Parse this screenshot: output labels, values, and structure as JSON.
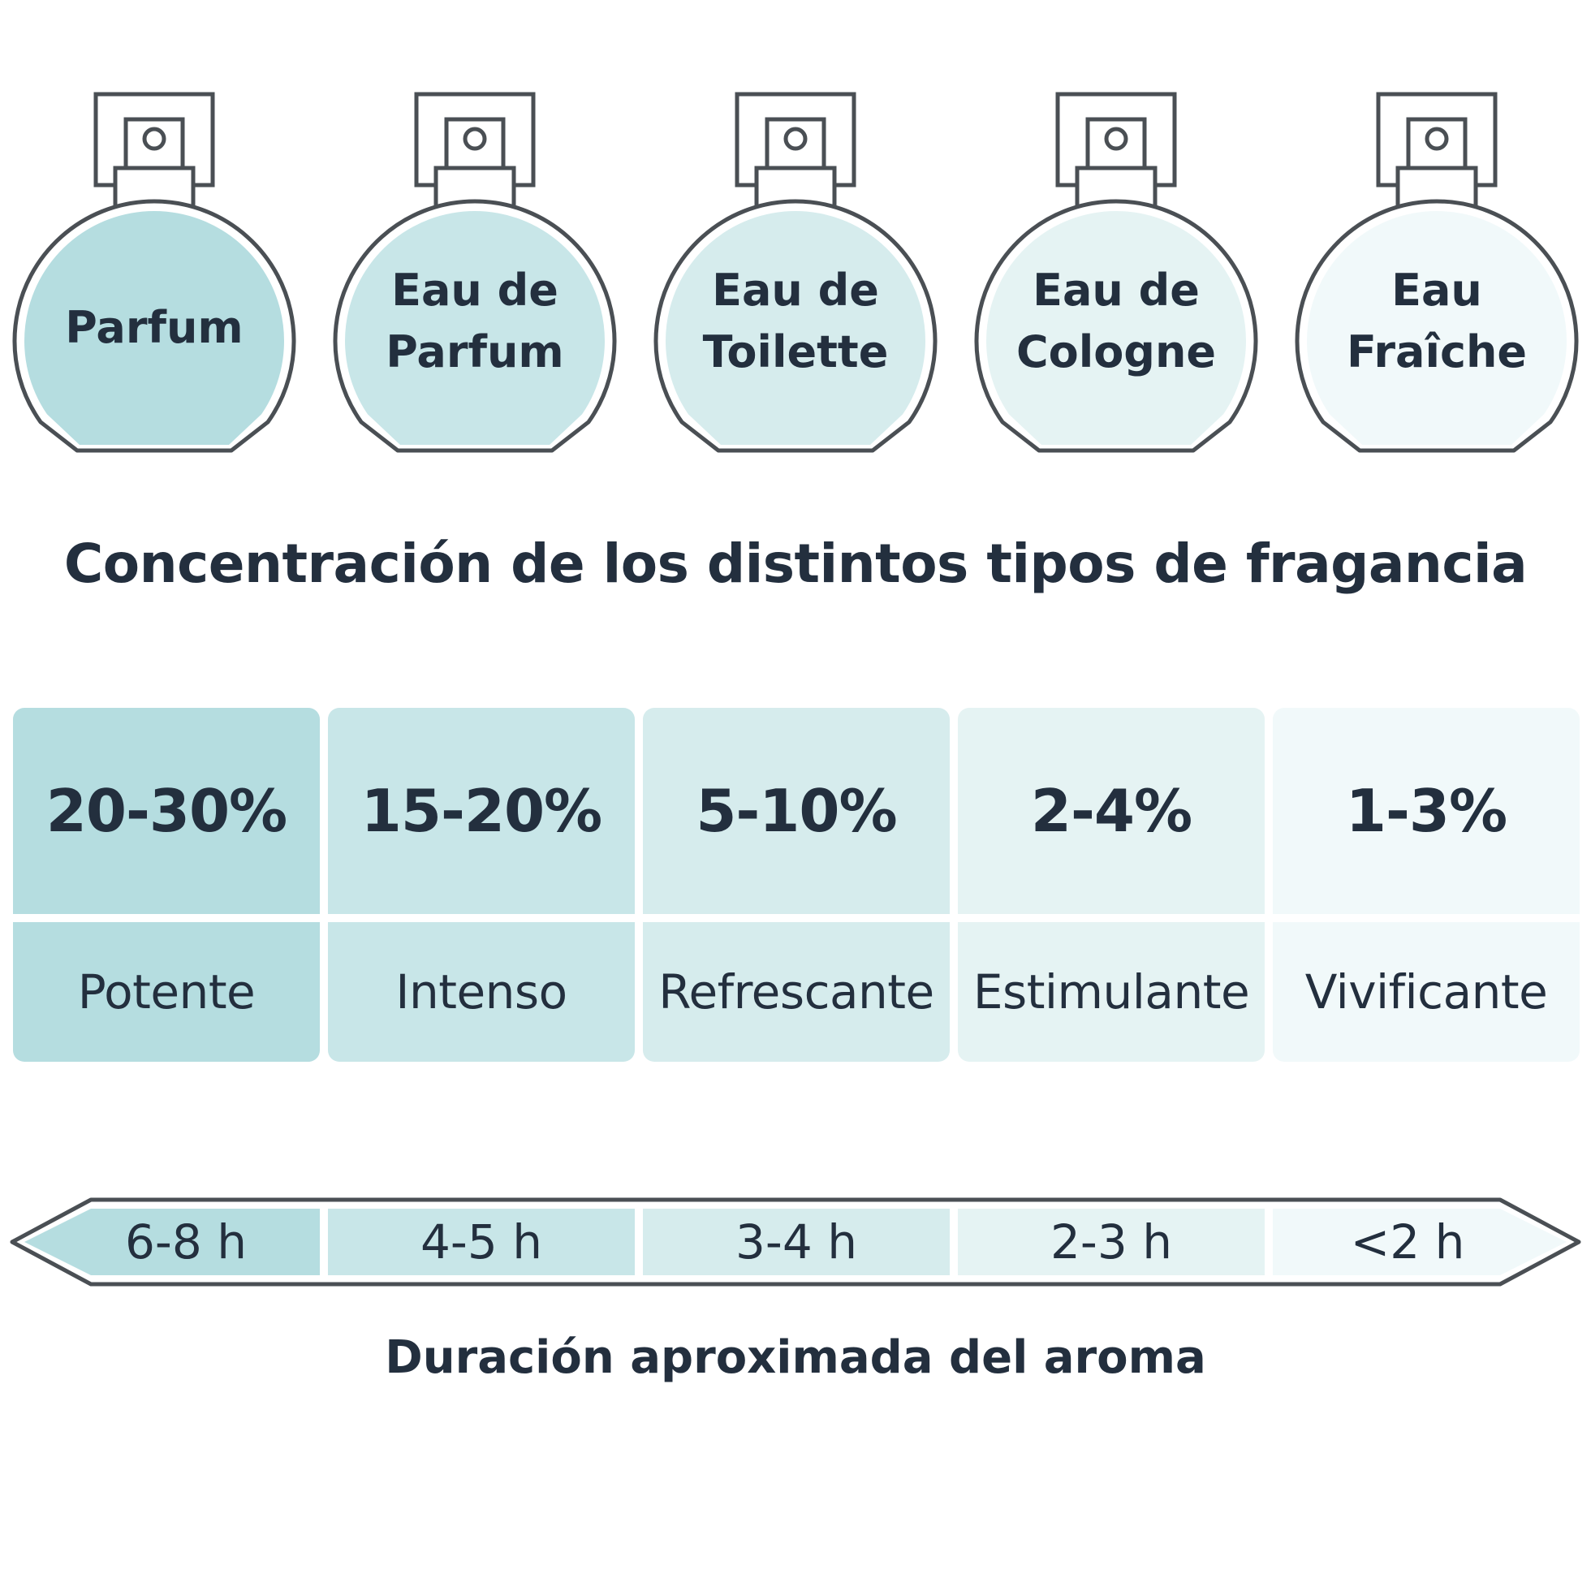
{
  "colors": {
    "outline": "#4a4f54",
    "text": "#232f3e",
    "tints": [
      "#b5dde0",
      "#c8e6e8",
      "#d6eced",
      "#e5f3f3",
      "#f1f9fa"
    ]
  },
  "bottles": [
    {
      "lines": [
        "Parfum"
      ]
    },
    {
      "lines": [
        "Eau de",
        "Parfum"
      ]
    },
    {
      "lines": [
        "Eau de",
        "Toilette"
      ]
    },
    {
      "lines": [
        "Eau de",
        "Cologne"
      ]
    },
    {
      "lines": [
        "Eau",
        "Fraîche"
      ]
    }
  ],
  "title": "Concentración de los distintos tipos de fragancia",
  "concentrations": [
    {
      "percent": "20-30%",
      "label": "Potente"
    },
    {
      "percent": "15-20%",
      "label": "Intenso"
    },
    {
      "percent": "5-10%",
      "label": "Refrescante"
    },
    {
      "percent": "2-4%",
      "label": "Estimulante"
    },
    {
      "percent": "1-3%",
      "label": "Vivificante"
    }
  ],
  "durations": [
    "6-8 h",
    "4-5 h",
    "3-4 h",
    "2-3 h",
    "<2 h"
  ],
  "duration_title": "Duración aproximada del aroma"
}
